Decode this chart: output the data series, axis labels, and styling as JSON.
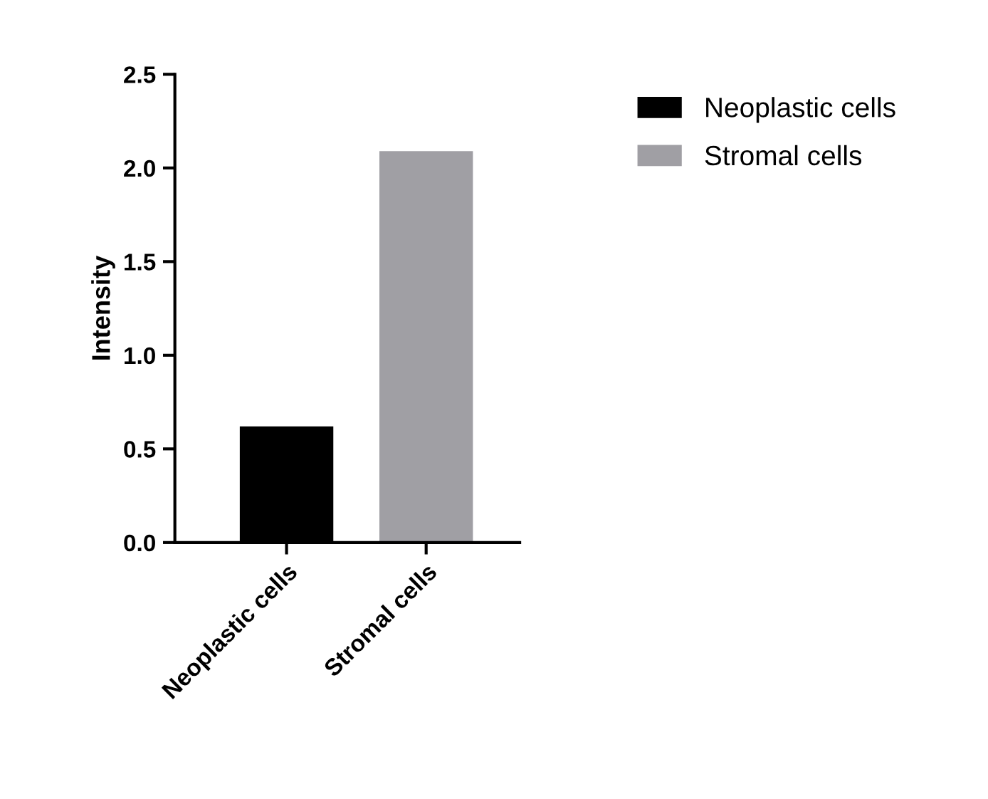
{
  "chart_data": {
    "type": "bar",
    "ylabel": "Intensity",
    "categories": [
      "Neoplastic cells",
      "Stromal cells"
    ],
    "series": [
      {
        "name": "Neoplastic cells",
        "color": "#000000",
        "values": [
          0.62,
          null
        ]
      },
      {
        "name": "Stromal cells",
        "color": "#a09fa4",
        "values": [
          null,
          2.09
        ]
      }
    ],
    "ylim": [
      0,
      2.5
    ],
    "yticks": [
      {
        "value": 0,
        "label": "0.0"
      },
      {
        "value": 0.5,
        "label": "0.5"
      },
      {
        "value": 1,
        "label": "1.0"
      },
      {
        "value": 1.5,
        "label": "1.5"
      },
      {
        "value": 2,
        "label": "2.0"
      },
      {
        "value": 2.5,
        "label": "2.5"
      }
    ],
    "grid": false,
    "legend": "top right"
  }
}
